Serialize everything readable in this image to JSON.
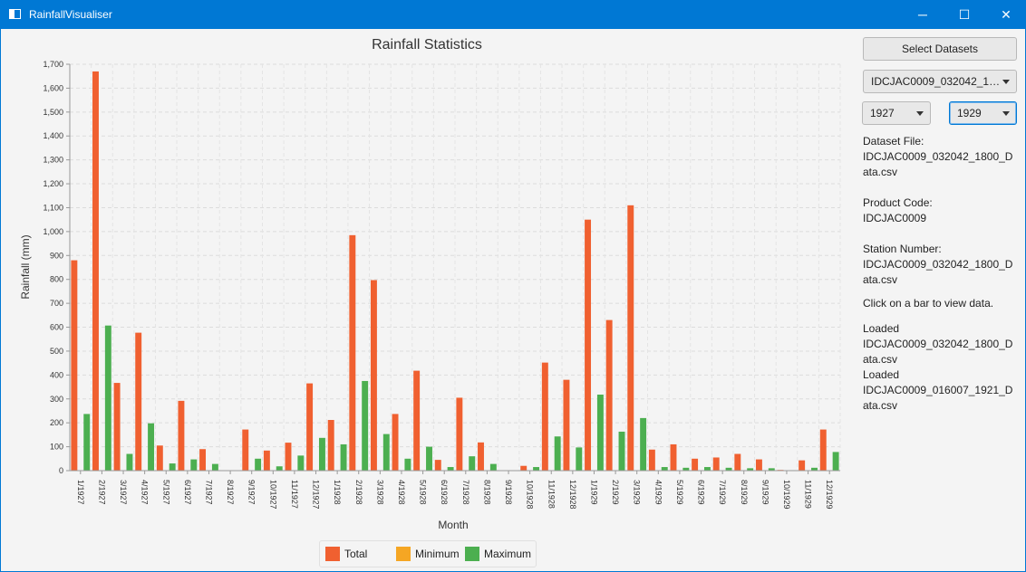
{
  "window": {
    "title": "RainfallVisualiser",
    "minimize": "─",
    "maximize": "☐",
    "close": "✕"
  },
  "sidebar": {
    "select_datasets": "Select Datasets",
    "dataset_combo": "IDCJAC0009_032042_1800_...",
    "year_from": "1927",
    "year_to": "1929",
    "dataset_file_label": "Dataset File:",
    "dataset_file_value": "IDCJAC0009_032042_1800_Data.csv",
    "product_code_label": "Product Code:",
    "product_code_value": "IDCJAC0009",
    "station_number_label": "Station Number:",
    "station_number_value": "IDCJAC0009_032042_1800_Data.csv",
    "hint": "Click on a bar to view data.",
    "loaded_1_label": "Loaded",
    "loaded_1_value": "IDCJAC0009_032042_1800_Data.csv",
    "loaded_2_label": "Loaded",
    "loaded_2_value": "IDCJAC0009_016007_1921_Data.csv"
  },
  "chart_data": {
    "type": "bar",
    "title": "Rainfall Statistics",
    "xlabel": "Month",
    "ylabel": "Rainfall (mm)",
    "ylim": [
      0,
      1700
    ],
    "ytick_step": 100,
    "yticks": [
      "0",
      "100",
      "200",
      "300",
      "400",
      "500",
      "600",
      "700",
      "800",
      "900",
      "1,000",
      "1,100",
      "1,200",
      "1,300",
      "1,400",
      "1,500",
      "1,600",
      "1,700"
    ],
    "grid": true,
    "legend_position": "bottom",
    "categories": [
      "1/1927",
      "2/1927",
      "3/1927",
      "4/1927",
      "5/1927",
      "6/1927",
      "7/1927",
      "8/1927",
      "9/1927",
      "10/1927",
      "11/1927",
      "12/1927",
      "1/1928",
      "2/1928",
      "3/1928",
      "4/1928",
      "5/1928",
      "6/1928",
      "7/1928",
      "8/1928",
      "9/1928",
      "10/1928",
      "11/1928",
      "12/1928",
      "1/1929",
      "2/1929",
      "3/1929",
      "4/1929",
      "5/1929",
      "6/1929",
      "7/1929",
      "8/1929",
      "9/1929",
      "10/1929",
      "11/1929",
      "12/1929"
    ],
    "series": [
      {
        "name": "Total",
        "color": "#f06030",
        "values": [
          880,
          1670,
          367,
          577,
          105,
          292,
          90,
          0,
          172,
          84,
          117,
          365,
          212,
          985,
          797,
          237,
          418,
          45,
          305,
          118,
          0,
          20,
          452,
          380,
          1050,
          630,
          1110,
          88,
          110,
          50,
          55,
          70,
          47,
          3,
          43,
          172
        ]
      },
      {
        "name": "Minimum",
        "color": "#f5a623",
        "values": [
          0,
          0,
          0,
          0,
          0,
          0,
          0,
          0,
          0,
          0,
          0,
          0,
          0,
          0,
          0,
          0,
          0,
          0,
          0,
          0,
          0,
          0,
          0,
          0,
          0,
          0,
          0,
          0,
          0,
          0,
          0,
          0,
          0,
          0,
          0,
          0
        ]
      },
      {
        "name": "Maximum",
        "color": "#4caf50",
        "values": [
          237,
          607,
          70,
          198,
          30,
          47,
          28,
          0,
          50,
          18,
          63,
          137,
          110,
          375,
          153,
          50,
          100,
          15,
          60,
          28,
          0,
          15,
          143,
          97,
          318,
          163,
          220,
          15,
          12,
          15,
          12,
          10,
          10,
          2,
          12,
          78
        ]
      }
    ]
  }
}
